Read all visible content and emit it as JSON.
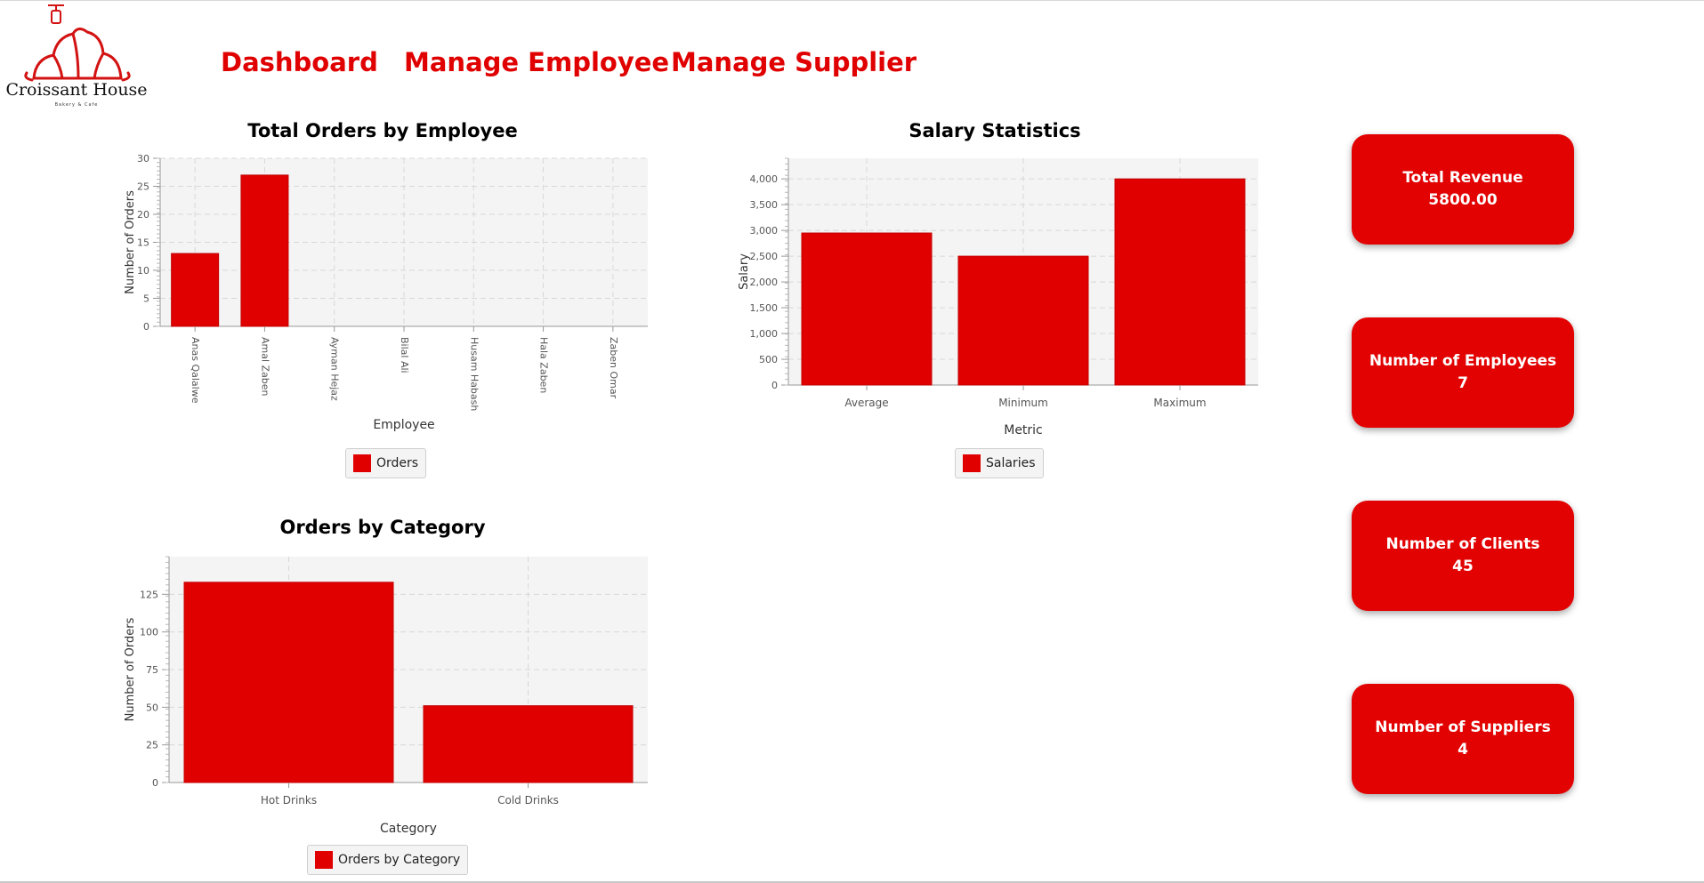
{
  "brand": {
    "name": "Croissant House",
    "tagline": "Bakery & Cafe"
  },
  "nav": {
    "dashboard": "Dashboard",
    "manage_employee": "Manage Employee",
    "manage_supplier": "Manage Supplier"
  },
  "colors": {
    "accent": "#e00000",
    "plot_background": "#f4f4f4"
  },
  "cards": {
    "revenue": {
      "label": "Total Revenue",
      "value": "5800.00"
    },
    "employees": {
      "label": "Number of Employees",
      "value": "7"
    },
    "clients": {
      "label": "Number of Clients",
      "value": "45"
    },
    "suppliers": {
      "label": "Number of Suppliers",
      "value": "4"
    }
  },
  "chart_data": [
    {
      "type": "bar",
      "title": "Total Orders by Employee",
      "xlabel": "Employee",
      "ylabel": "Number of Orders",
      "categories": [
        "Anas Qalalwe",
        "Amal Zaben",
        "Ayman Hejaz",
        "Bilal Ali",
        "Husam Habash",
        "Hala Zaben",
        "Zaben Omar"
      ],
      "series": [
        {
          "name": "Orders",
          "values": [
            13,
            27,
            0,
            0,
            0,
            0,
            0
          ]
        }
      ],
      "ylim": [
        0,
        30
      ],
      "yticks": [
        "0",
        "5",
        "10",
        "15",
        "20",
        "25",
        "30"
      ],
      "grid": true,
      "legend": "bottom"
    },
    {
      "type": "bar",
      "title": "Salary Statistics",
      "xlabel": "Metric",
      "ylabel": "Salary",
      "categories": [
        "Average",
        "Minimum",
        "Maximum"
      ],
      "series": [
        {
          "name": "Salaries",
          "values": [
            2950,
            2500,
            4000
          ]
        }
      ],
      "ylim": [
        0,
        4400
      ],
      "yticks": [
        "0",
        "500",
        "1,000",
        "1,500",
        "2,000",
        "2,500",
        "3,000",
        "3,500",
        "4,000"
      ],
      "grid": true,
      "legend": "bottom"
    },
    {
      "type": "bar",
      "title": "Orders by Category",
      "xlabel": "Category",
      "ylabel": "Number of Orders",
      "categories": [
        "Hot Drinks",
        "Cold Drinks"
      ],
      "series": [
        {
          "name": "Orders by Category",
          "values": [
            133,
            51
          ]
        }
      ],
      "ylim": [
        0,
        150
      ],
      "yticks": [
        "0",
        "25",
        "50",
        "75",
        "100",
        "125"
      ],
      "grid": true,
      "legend": "bottom"
    }
  ]
}
